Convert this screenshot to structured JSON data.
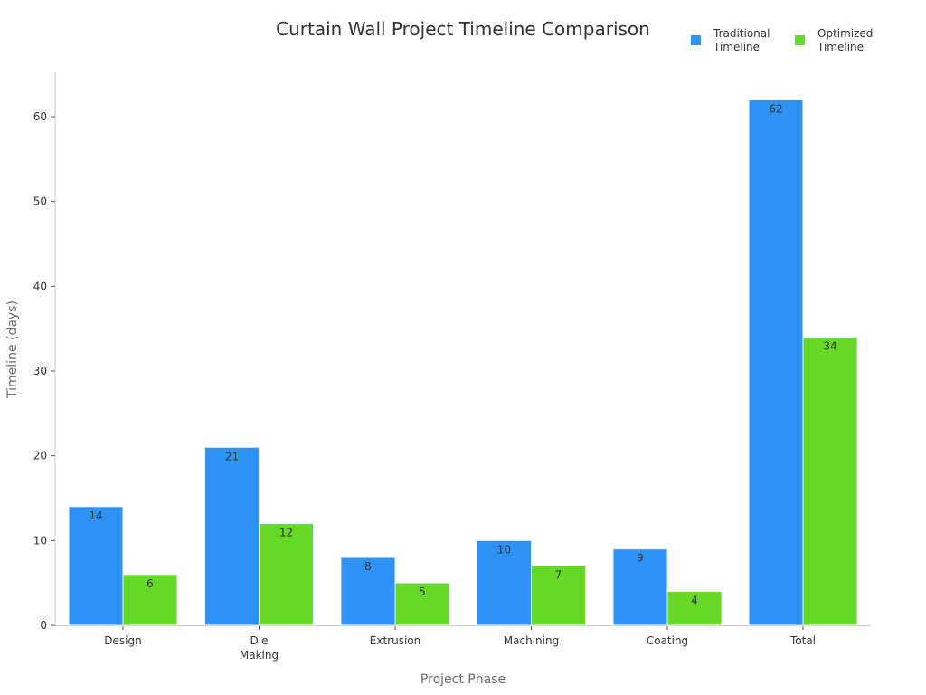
{
  "title": "Curtain Wall Project Timeline Comparison",
  "legend": [
    {
      "label": "Traditional\nTimeline",
      "color": "#2f93f6"
    },
    {
      "label": "Optimized\nTimeline",
      "color": "#66d926"
    }
  ],
  "axes": {
    "xlabel": "Project Phase",
    "ylabel": "Timeline (days)",
    "yticks": [
      "0",
      "10",
      "20",
      "30",
      "40",
      "50",
      "60"
    ]
  },
  "chart_data": {
    "type": "bar",
    "title": "Curtain Wall Project Timeline Comparison",
    "xlabel": "Project Phase",
    "ylabel": "Timeline (days)",
    "categories": [
      "Design",
      "Die Making",
      "Extrusion",
      "Machining",
      "Coating",
      "Total"
    ],
    "series": [
      {
        "name": "Traditional Timeline",
        "color": "#2f93f6",
        "values": [
          14,
          21,
          8,
          10,
          9,
          62
        ]
      },
      {
        "name": "Optimized Timeline",
        "color": "#66d926",
        "values": [
          6,
          12,
          5,
          7,
          4,
          34
        ]
      }
    ],
    "ylim": [
      0,
      65
    ],
    "yticks": [
      0,
      10,
      20,
      30,
      40,
      50,
      60
    ],
    "grid": false,
    "legend_position": "top-right",
    "data_labels": true
  }
}
